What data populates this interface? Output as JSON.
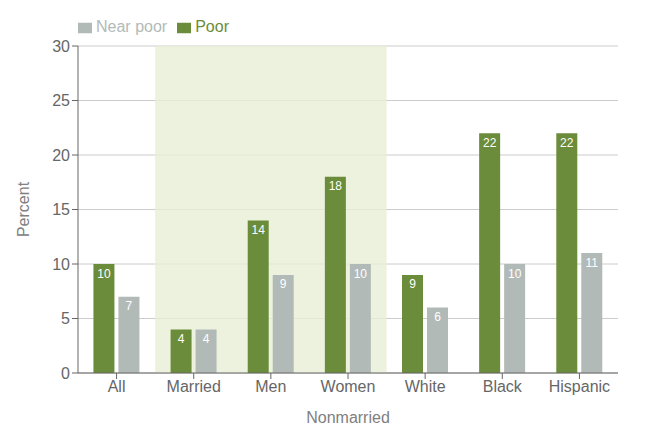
{
  "chart_data": {
    "type": "bar",
    "xlabel": "Nonmarried",
    "ylabel": "Percent",
    "categories": [
      "All",
      "Married",
      "Men",
      "Women",
      "White",
      "Black",
      "Hispanic"
    ],
    "series": [
      {
        "name": "Poor",
        "color": "#6b8c3a",
        "values": [
          10,
          4,
          14,
          18,
          9,
          22,
          22
        ]
      },
      {
        "name": "Near poor",
        "color": "#b2bab8",
        "values": [
          7,
          4,
          9,
          10,
          6,
          10,
          11
        ]
      }
    ],
    "ylim": [
      0,
      30
    ],
    "yticks": [
      0,
      5,
      10,
      15,
      20,
      25,
      30
    ],
    "grid": true,
    "legend": "upper left",
    "data_labels": true
  }
}
